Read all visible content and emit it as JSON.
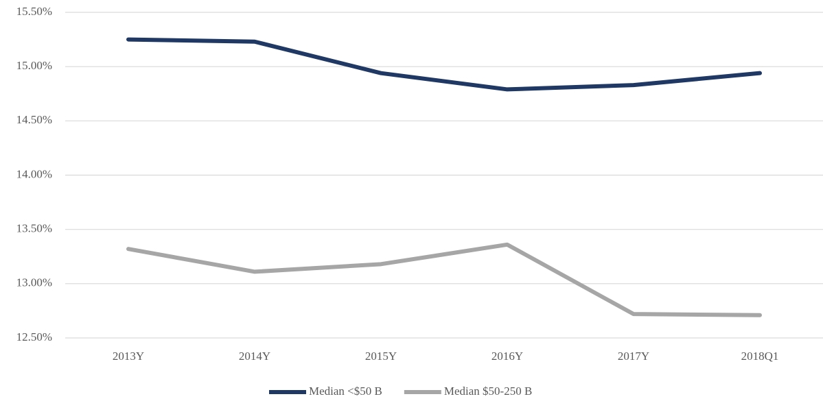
{
  "chart_data": {
    "type": "line",
    "categories": [
      "2013Y",
      "2014Y",
      "2015Y",
      "2016Y",
      "2017Y",
      "2018Q1"
    ],
    "series": [
      {
        "name": "Median <$50 B",
        "color": "#1f3864",
        "values": [
          15.25,
          15.23,
          14.94,
          14.79,
          14.83,
          14.94
        ]
      },
      {
        "name": "Median $50-250 B",
        "color": "#a6a6a6",
        "values": [
          13.32,
          13.11,
          13.18,
          13.36,
          12.72,
          12.71
        ]
      }
    ],
    "ylim": [
      12.5,
      15.5
    ],
    "yticks": [
      {
        "value": 12.5,
        "label": "12.50%"
      },
      {
        "value": 13,
        "label": "13.00%"
      },
      {
        "value": 13.5,
        "label": "13.50%"
      },
      {
        "value": 14,
        "label": "14.00%"
      },
      {
        "value": 14.5,
        "label": "14.50%"
      },
      {
        "value": 15,
        "label": "15.00%"
      },
      {
        "value": 15.5,
        "label": "15.50%"
      }
    ],
    "grid": true,
    "legend": "bottom"
  }
}
